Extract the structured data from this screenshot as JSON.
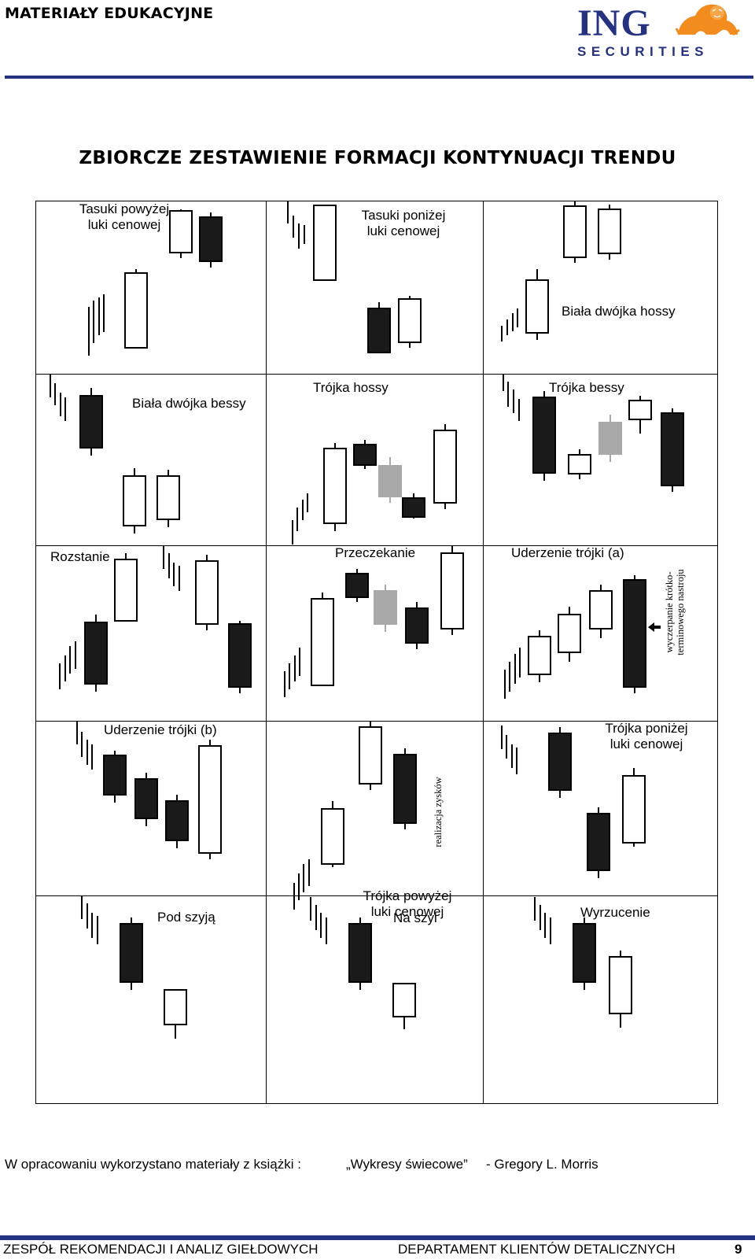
{
  "header": {
    "left_title": "MATERIAŁY EDUKACYJNE",
    "logo_text": "ING",
    "logo_subtext": "SECURITIES",
    "brand_color": "#24327f",
    "lion_color": "#f28c1e"
  },
  "title": "ZBIORCZE ZESTAWIENIE FORMACJI KONTYNUACJI TRENDU",
  "patterns": [
    {
      "name": "Tasuki powyżej\nluki cenowej"
    },
    {
      "name": "Tasuki poniżej\nluki cenowej"
    },
    {
      "name": "Biała dwójka hossy"
    },
    {
      "name": "Biała dwójka bessy"
    },
    {
      "name": "Trójka hossy"
    },
    {
      "name": "Trójka bessy"
    },
    {
      "name": "Rozstanie"
    },
    {
      "name": "Przeczekanie"
    },
    {
      "name": "Uderzenie trójki (a)",
      "note": "wyczerpanie krótko-\nterminowego nastroju"
    },
    {
      "name": "Uderzenie trójki (b)"
    },
    {
      "name": "Trójka powyżej\nluki cenowej",
      "note": "realizacja zysków"
    },
    {
      "name": "Trójka poniżej\nluki cenowej"
    },
    {
      "name": "Pod szyją"
    },
    {
      "name": "Na szyi"
    },
    {
      "name": "Wyrzucenie"
    }
  ],
  "candle_colors": {
    "black": "#1a1a1a",
    "white": "#ffffff",
    "gray": "#a9a9a9"
  },
  "source": {
    "prefix": "W opracowaniu wykorzystano materiały z książki :",
    "book": "„Wykresy świecowe”",
    "author": "- Gregory L. Morris"
  },
  "footer": {
    "left": "ZESPÓŁ REKOMENDACJI I ANALIZ GIEŁDOWYCH",
    "right": "DEPARTAMENT KLIENTÓW DETALICZNYCH",
    "page_number": "9"
  }
}
